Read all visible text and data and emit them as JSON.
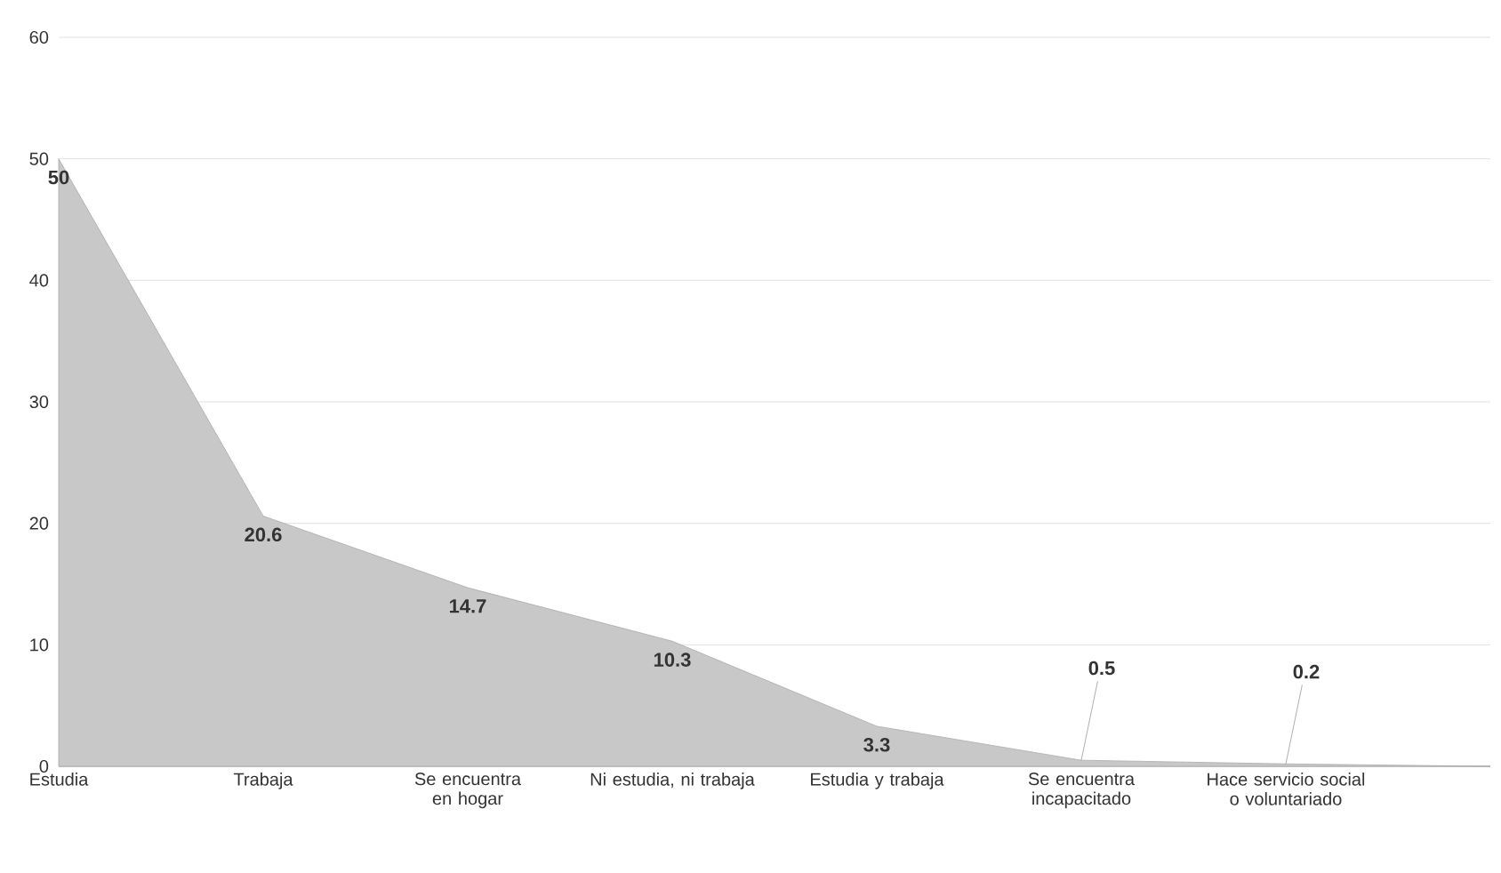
{
  "chart_data": {
    "type": "area",
    "categories": [
      "Estudia",
      "Trabaja",
      "Se encuentra en hogar",
      "Ni estudia, ni trabaja",
      "Estudia y trabaja",
      "Se encuentra incapacitado",
      "Hace servicio social o voluntariado",
      null
    ],
    "values": [
      50,
      20.6,
      14.7,
      10.3,
      3.3,
      0.5,
      0.2,
      0
    ],
    "value_labels": [
      "50",
      "20.6",
      "14.7",
      "10.3",
      "3.3",
      "0.5",
      "0.2",
      null
    ],
    "color": "#c8c8c8",
    "ylim": [
      0,
      60
    ],
    "yticks": [
      0,
      10,
      20,
      30,
      40,
      50,
      60
    ],
    "grid": "y"
  }
}
